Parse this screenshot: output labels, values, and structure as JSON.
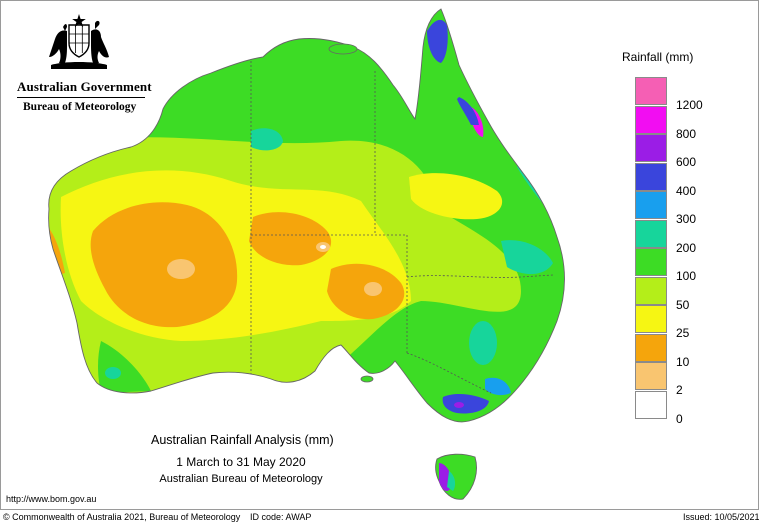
{
  "header": {
    "org_name": "Australian Government",
    "agency_name": "Bureau of Meteorology",
    "crest_icon": "coat-of-arms-icon"
  },
  "legend": {
    "title": "Rainfall (mm)",
    "items": [
      {
        "label": "1200",
        "color": "#f55fb4"
      },
      {
        "label": "800",
        "color": "#f20df2"
      },
      {
        "label": "600",
        "color": "#9b1de6"
      },
      {
        "label": "400",
        "color": "#3a45dc"
      },
      {
        "label": "300",
        "color": "#189fee"
      },
      {
        "label": "200",
        "color": "#17d59b"
      },
      {
        "label": "100",
        "color": "#3ddc25"
      },
      {
        "label": "50",
        "color": "#b4ee19"
      },
      {
        "label": "25",
        "color": "#f6f613"
      },
      {
        "label": "10",
        "color": "#f5a50c"
      },
      {
        "label": "2",
        "color": "#f9c570"
      },
      {
        "label": "0",
        "color": "#ffffff"
      }
    ]
  },
  "caption": {
    "title": "Australian Rainfall Analysis (mm)",
    "period": "1 March to 31 May 2020",
    "source": "Australian Bureau of Meteorology"
  },
  "url": "http://www.bom.gov.au",
  "footer": {
    "copyright": "© Commonwealth of Australia 2021, Bureau of Meteorology",
    "id_code": "ID code: AWAP",
    "issued": "Issued: 10/05/2021"
  }
}
